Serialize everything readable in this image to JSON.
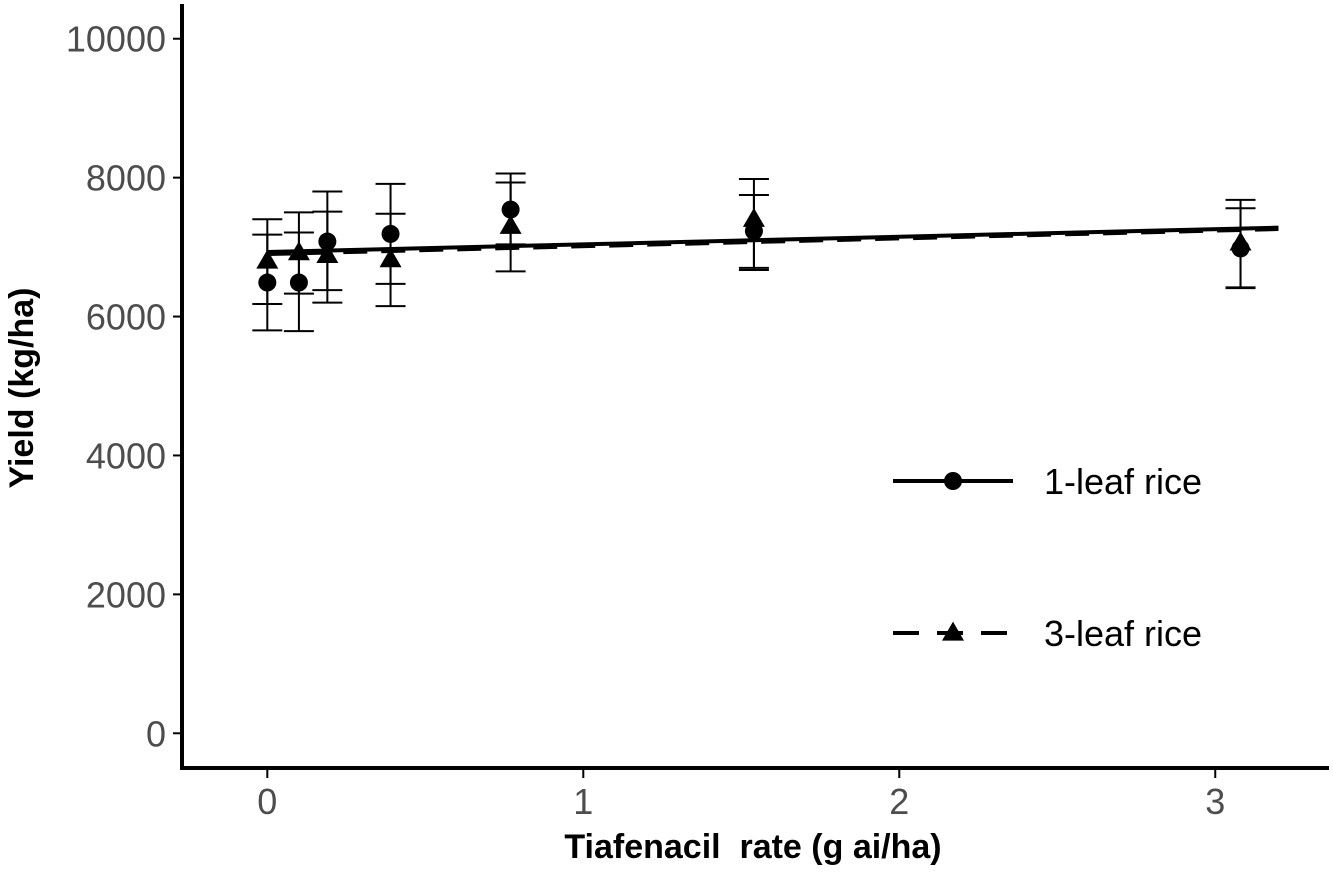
{
  "chart_data": {
    "type": "scatter",
    "xlabel": "Tiafenacil  rate (g ai/ha)",
    "ylabel": "Yield (kg/ha)",
    "xlim": [
      -0.27,
      3.36
    ],
    "ylim": [
      -500,
      10500
    ],
    "xticks": [
      0,
      1,
      2,
      3
    ],
    "yticks": [
      0,
      2000,
      4000,
      6000,
      8000,
      10000
    ],
    "grid": false,
    "legend_position": "right",
    "colors": {
      "ink": "#000000",
      "tick_text": "#4d4d4d"
    },
    "series": [
      {
        "name": "1-leaf rice",
        "marker": "circle",
        "line_style": "solid",
        "points": [
          {
            "x": 0.0,
            "y": 6490,
            "err_low": 5800,
            "err_high": 7180
          },
          {
            "x": 0.1,
            "y": 6490,
            "err_low": 5790,
            "err_high": 7210
          },
          {
            "x": 0.19,
            "y": 7080,
            "err_low": 6380,
            "err_high": 7800
          },
          {
            "x": 0.39,
            "y": 7190,
            "err_low": 6470,
            "err_high": 7910
          },
          {
            "x": 0.77,
            "y": 7540,
            "err_low": 7040,
            "err_high": 8060
          },
          {
            "x": 1.54,
            "y": 7230,
            "err_low": 6700,
            "err_high": 7750
          },
          {
            "x": 3.08,
            "y": 6980,
            "err_low": 6410,
            "err_high": 7560
          }
        ],
        "fit": {
          "x": [
            0,
            3.2
          ],
          "y": [
            6930,
            7280
          ]
        }
      },
      {
        "name": "3-leaf rice",
        "marker": "triangle",
        "line_style": "dashed",
        "points": [
          {
            "x": 0.0,
            "y": 6800,
            "err_low": 6180,
            "err_high": 7400
          },
          {
            "x": 0.1,
            "y": 6920,
            "err_low": 6330,
            "err_high": 7500
          },
          {
            "x": 0.19,
            "y": 6880,
            "err_low": 6200,
            "err_high": 7510
          },
          {
            "x": 0.39,
            "y": 6820,
            "err_low": 6150,
            "err_high": 7480
          },
          {
            "x": 0.77,
            "y": 7300,
            "err_low": 6650,
            "err_high": 7930
          },
          {
            "x": 1.54,
            "y": 7400,
            "err_low": 6670,
            "err_high": 7980
          },
          {
            "x": 3.08,
            "y": 7060,
            "err_low": 6420,
            "err_high": 7680
          }
        ],
        "fit": {
          "x": [
            0,
            3.2
          ],
          "y": [
            6900,
            7260
          ]
        }
      }
    ]
  }
}
